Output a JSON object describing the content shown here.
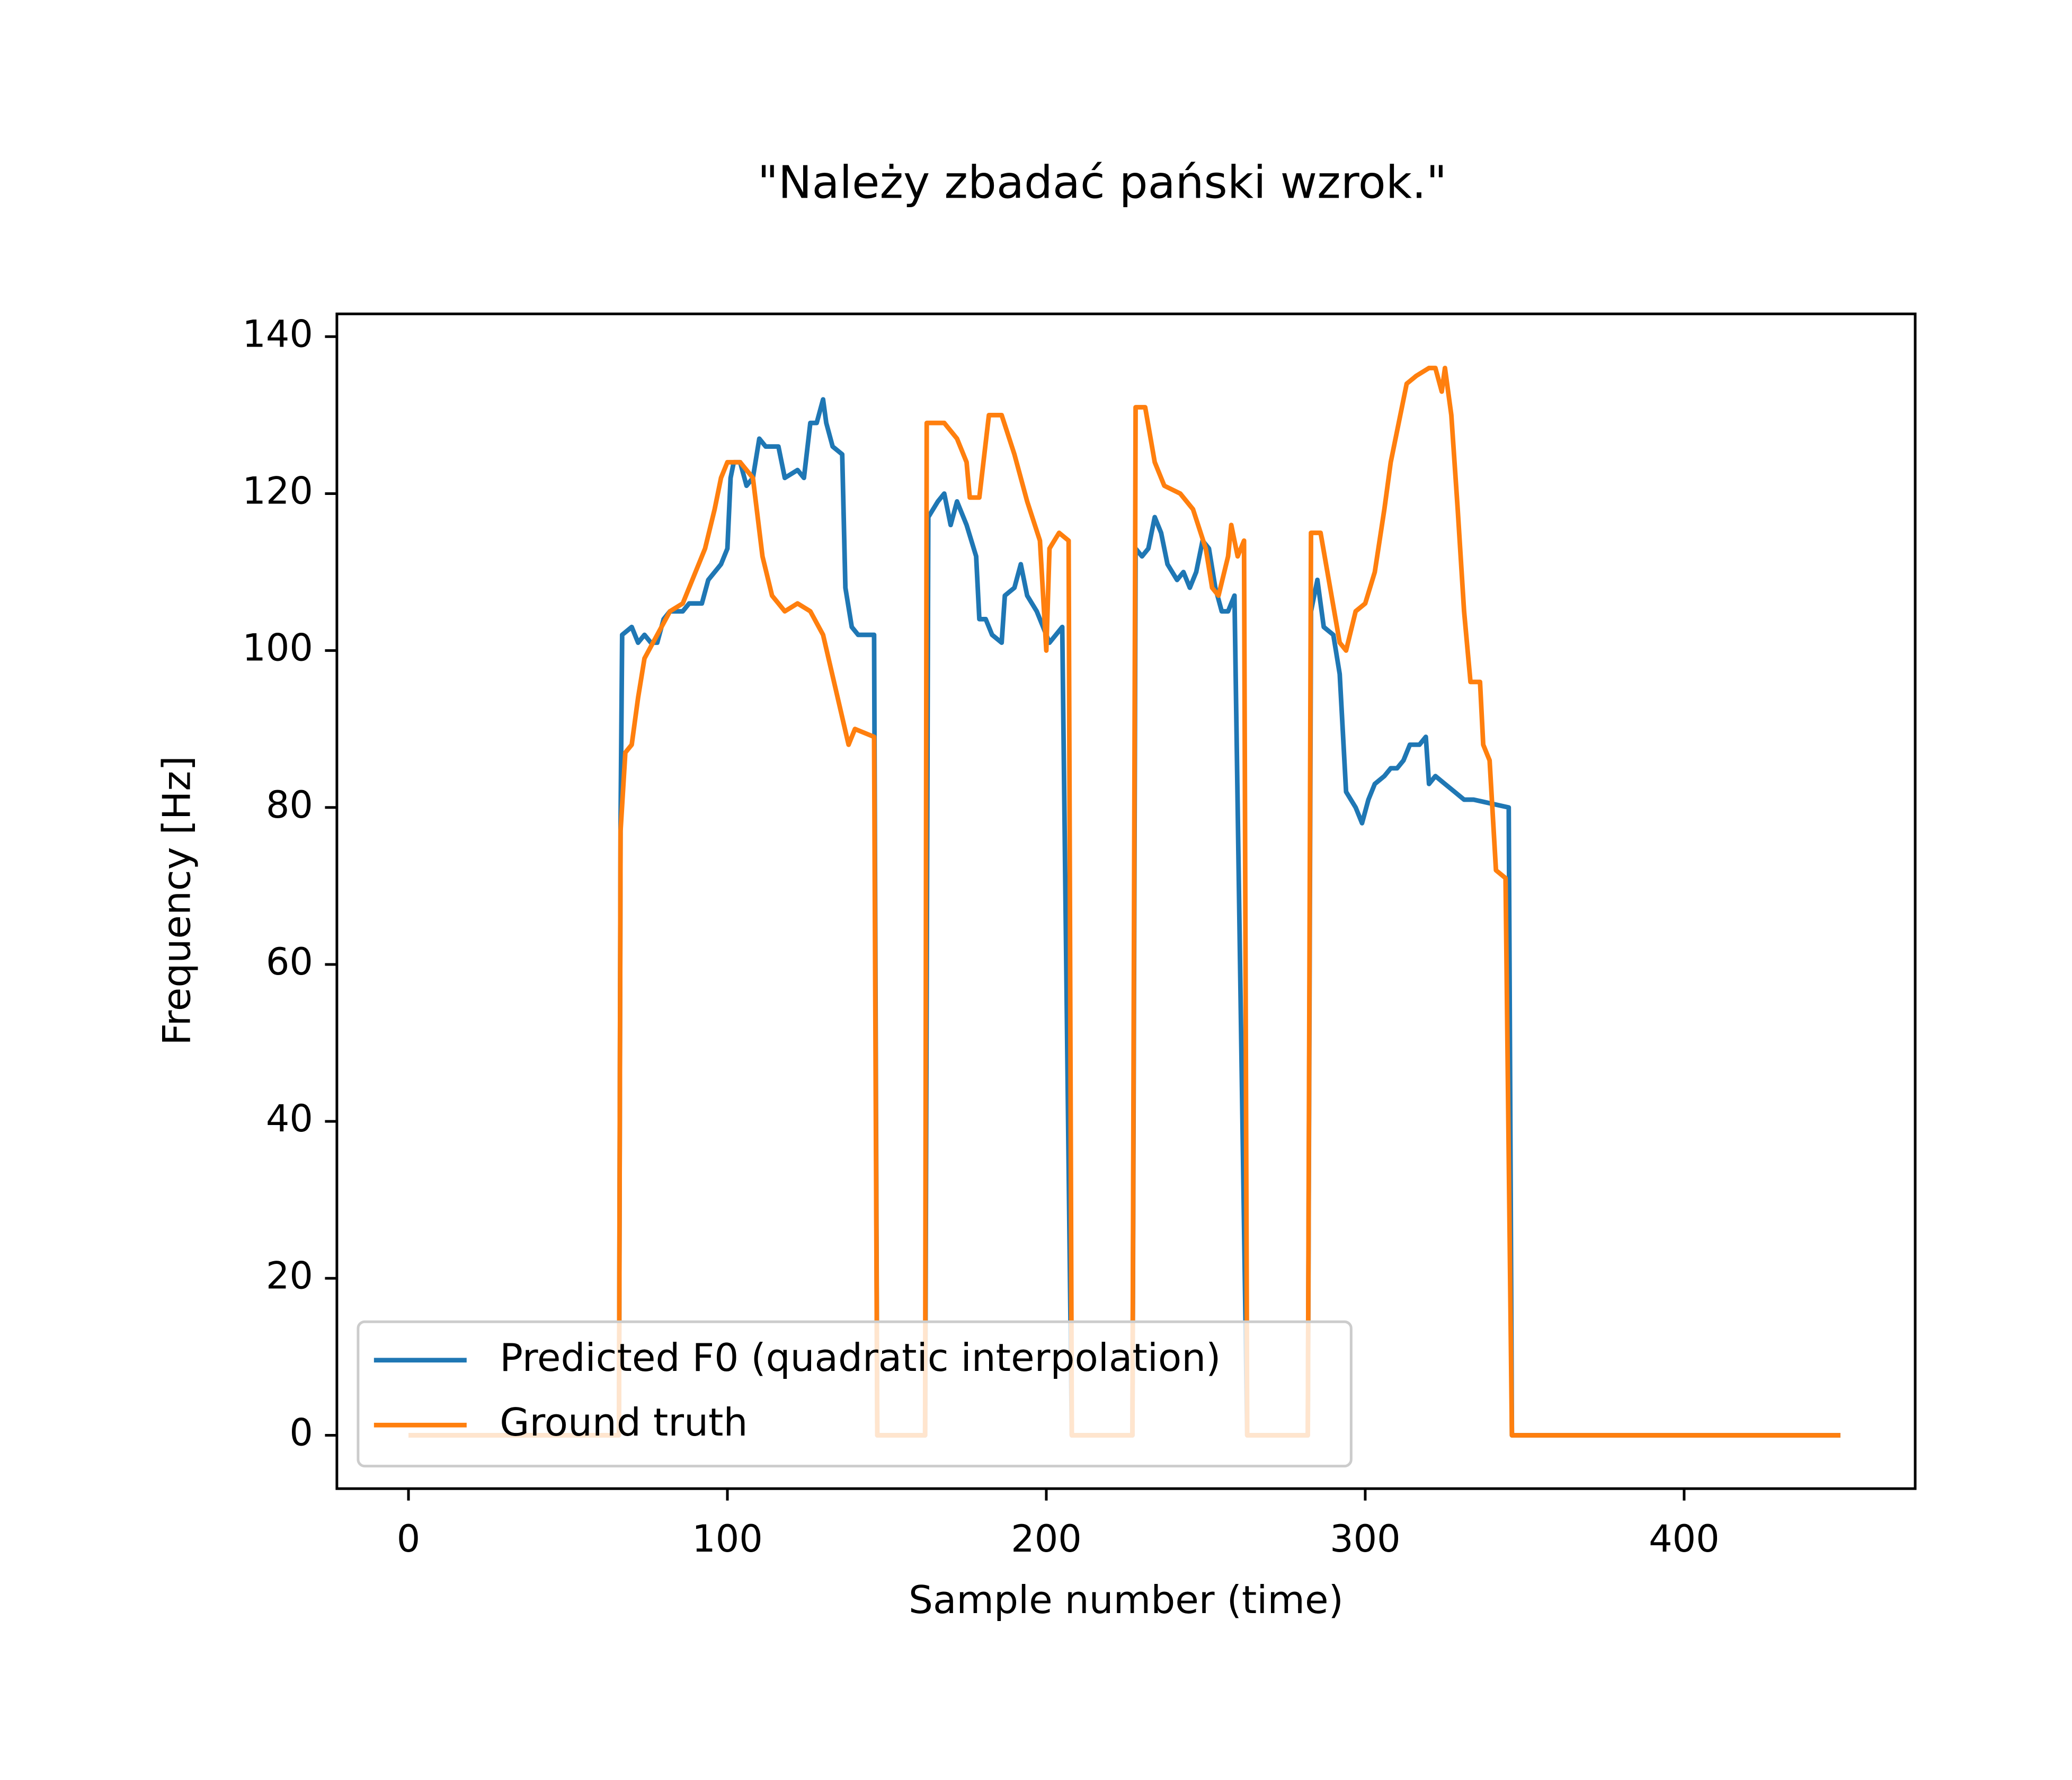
{
  "chart_data": {
    "type": "line",
    "title": "\"Należy zbadać pański wzrok.\"",
    "xlabel": "Sample number (time)",
    "ylabel": "Frequency [Hz]",
    "xlim": [
      -22.45,
      472.45
    ],
    "ylim": [
      -6.8,
      142.9
    ],
    "xticks": [
      0,
      100,
      200,
      300,
      400
    ],
    "yticks": [
      0,
      20,
      40,
      60,
      80,
      100,
      120,
      140
    ],
    "legend": "lower left",
    "series": [
      {
        "name": "Predicted F0 (quadratic interpolation)",
        "color": "#1f77b4",
        "x": [
          0,
          66,
          66.5,
          67,
          70,
          72,
          74,
          76,
          78,
          80,
          82,
          86,
          88,
          92,
          94,
          98,
          100,
          101,
          102,
          104,
          106,
          108,
          110,
          112,
          116,
          118,
          122,
          124,
          126,
          128,
          130,
          131,
          133,
          136,
          137,
          139,
          141,
          143,
          146,
          147,
          162,
          163,
          166,
          168,
          170,
          172,
          175,
          178,
          179,
          181,
          183,
          186,
          187,
          190,
          192,
          194,
          197,
          199,
          201,
          203,
          205,
          208,
          227,
          228,
          230,
          232,
          234,
          236,
          238,
          241,
          243,
          245,
          247,
          249,
          251,
          253,
          255,
          257,
          259,
          263,
          282,
          283,
          285,
          287,
          290,
          292,
          294,
          297,
          299,
          301,
          303,
          306,
          308,
          310,
          312,
          314,
          317,
          319,
          320,
          322,
          325,
          328,
          331,
          334,
          345,
          346,
          449
        ],
        "values": [
          0,
          0,
          78,
          102,
          103,
          101,
          102,
          101,
          101,
          104,
          105,
          105,
          106,
          106,
          109,
          111,
          113,
          122,
          124,
          124,
          121,
          122,
          127,
          126,
          126,
          122,
          123,
          122,
          129,
          129,
          132,
          129,
          126,
          125,
          108,
          103,
          102,
          102,
          102,
          0,
          0,
          117,
          119,
          120,
          116,
          119,
          116,
          112,
          104,
          104,
          102,
          101,
          107,
          108,
          111,
          107,
          105,
          103,
          101,
          102,
          103,
          0,
          0,
          113,
          112,
          113,
          117,
          115,
          111,
          109,
          110,
          108,
          110,
          114,
          113,
          108,
          105,
          105,
          107,
          0,
          0,
          105,
          109,
          103,
          102,
          97,
          82,
          80,
          78,
          81,
          83,
          84,
          85,
          85,
          86,
          88,
          88,
          89,
          83,
          84,
          83,
          82,
          81,
          81,
          80,
          0,
          0
        ]
      },
      {
        "name": "Ground truth",
        "color": "#ff7f0e",
        "x": [
          0,
          66,
          66.5,
          68,
          70,
          72,
          74,
          78,
          82,
          86,
          90,
          93,
          96,
          98,
          100,
          104,
          108,
          111,
          114,
          118,
          122,
          126,
          130,
          134,
          138,
          140,
          146,
          147,
          162,
          162.5,
          168,
          172,
          175,
          176,
          179,
          182,
          186,
          190,
          194,
          198,
          199,
          200,
          201,
          204,
          207,
          208,
          227,
          228,
          231,
          234,
          237,
          242,
          246,
          250,
          252,
          254,
          257,
          258,
          260,
          262,
          263,
          282,
          283,
          286,
          289,
          292,
          294,
          297,
          300,
          303,
          306,
          308,
          311,
          313,
          316,
          320,
          322,
          324,
          325,
          327,
          329,
          331,
          333,
          336,
          337,
          339,
          341,
          344,
          346,
          449
        ],
        "values": [
          0,
          0,
          77,
          87,
          88,
          94,
          99,
          102,
          105,
          106,
          110,
          113,
          118,
          122,
          124,
          124,
          122,
          112,
          107,
          105,
          106,
          105,
          102,
          95,
          88,
          90,
          89,
          0,
          0,
          129,
          129,
          127,
          124,
          119.5,
          119.5,
          130,
          130,
          125,
          119,
          114,
          107,
          100,
          113,
          115,
          114,
          0,
          0,
          131,
          131,
          124,
          121,
          120,
          118,
          113,
          108,
          107,
          112,
          116,
          112,
          114,
          0,
          0,
          115,
          115,
          108,
          101,
          100,
          105,
          106,
          110,
          118,
          124,
          130,
          134,
          135,
          136,
          136,
          133,
          136,
          130,
          118,
          105,
          96,
          96,
          88,
          86,
          72,
          71,
          0,
          0
        ]
      }
    ]
  }
}
